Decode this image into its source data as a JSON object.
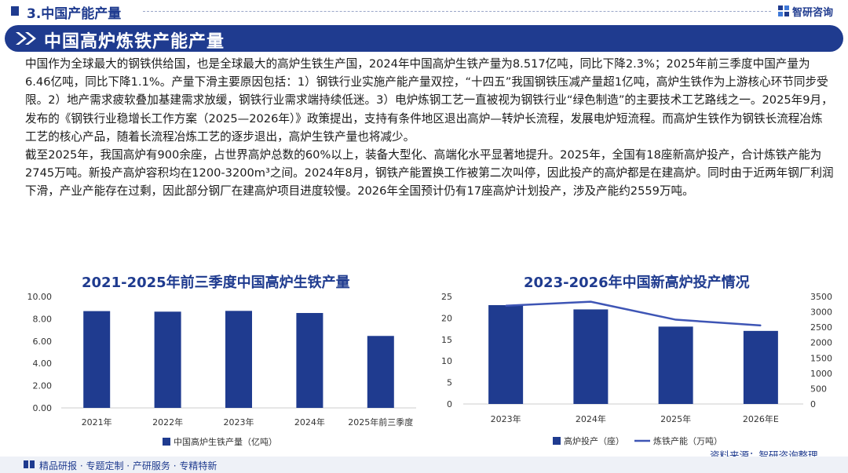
{
  "header": {
    "section_title": "3.中国产能产量",
    "logo_text": "智研咨询"
  },
  "main_title": "中国高炉炼铁产能产量",
  "paragraphs": [
    "中国作为全球最大的钢铁供给国，也是全球最大的高炉生铁生产国，2024年中国高炉生铁产量为8.517亿吨，同比下降2.3%；2025年前三季度中国产量为6.46亿吨，同比下降1.1%。产量下滑主要原因包括：1）钢铁行业实施产能产量双控，“十四五”我国钢铁压减产量超1亿吨，高炉生铁作为上游核心环节同步受限。2）地产需求疲软叠加基建需求放缓，钢铁行业需求端持续低迷。3）电炉炼钢工艺一直被视为钢铁行业“绿色制造”的主要技术工艺路线之一。2025年9月，发布的《钢铁行业稳增长工作方案（2025—2026年）》政策提出，支持有条件地区退出高炉—转炉长流程，发展电炉短流程。而高炉生铁作为钢铁长流程冶炼工艺的核心产品，随着长流程冶炼工艺的逐步退出，高炉生铁产量也将减少。",
    "截至2025年，我国高炉有900余座，占世界高炉总数的60%以上，装备大型化、高端化水平显著地提升。2025年，全国有18座新高炉投产，合计炼铁产能为2745万吨。新投产高炉容积均在1200-3200m³之间。2024年8月，钢铁产能置换工作被第二次叫停，因此投产的高炉都是在建高炉。同时由于近两年钢厂利润下滑，产业产能存在过剩，因此部分钢厂在建高炉项目进度较慢。2026年全国预计仍有17座高炉计划投产，涉及产能约2559万吨。"
  ],
  "footer": {
    "links": "精品研报 · 专题定制 · 产研服务 · 专精特新",
    "source": "资料来源：智研咨询整理"
  },
  "chart_data": [
    {
      "type": "bar",
      "title": "2021-2025年前三季度中国高炉生铁产量",
      "categories": [
        "2021年",
        "2022年",
        "2023年",
        "2024年",
        "2025年前三季度"
      ],
      "series": [
        {
          "name": "中国高炉生铁产量（亿吨）",
          "values": [
            8.69,
            8.64,
            8.71,
            8.52,
            6.46
          ],
          "color": "#1f3b8f"
        }
      ],
      "yticks": [
        "0.00",
        "2.00",
        "4.00",
        "6.00",
        "8.00",
        "10.00"
      ],
      "ylim": [
        0,
        10
      ],
      "legend_position": "bottom",
      "grid": false
    },
    {
      "type": "bar",
      "title": "2023-2026年中国新高炉投产情况",
      "categories": [
        "2023年",
        "2024年",
        "2025年",
        "2026年E"
      ],
      "series": [
        {
          "name": "高炉投产（座）",
          "values": [
            23,
            22,
            18,
            17
          ],
          "color": "#1f3b8f",
          "axis": "left"
        },
        {
          "name": "炼铁产能（万吨）",
          "values": [
            3200,
            3330,
            2745,
            2559
          ],
          "color": "#3e55b5",
          "axis": "right",
          "type": "line"
        }
      ],
      "yticks_left": [
        "0",
        "5",
        "10",
        "15",
        "20",
        "25"
      ],
      "yticks_right": [
        "0",
        "500",
        "1000",
        "1500",
        "2000",
        "2500",
        "3000",
        "3500"
      ],
      "ylim_left": [
        0,
        25
      ],
      "ylim_right": [
        0,
        3500
      ],
      "legend_position": "bottom",
      "grid": false
    }
  ]
}
